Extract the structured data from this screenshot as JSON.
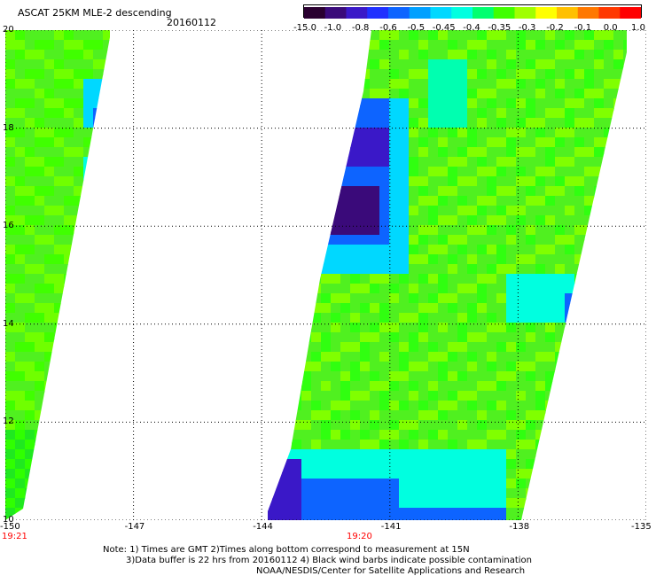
{
  "header": {
    "title": "ASCAT 25KM MLE-2 descending",
    "date": "20160112"
  },
  "colorbar": {
    "colors": [
      "#2a0030",
      "#3a0a7a",
      "#3a18c8",
      "#2030ff",
      "#0d64ff",
      "#00a0ff",
      "#00d8ff",
      "#00ffe0",
      "#00ff70",
      "#40ff00",
      "#a0ff00",
      "#ffff00",
      "#ffc000",
      "#ff7800",
      "#ff3800",
      "#ff0000"
    ],
    "ticks": [
      "-15.0",
      "-1.0",
      "-0.8",
      "-0.6",
      "-0.5",
      "-0.45",
      "-0.4",
      "-0.35",
      "-0.3",
      "-0.2",
      "-0.1",
      "0.0",
      "1.0"
    ]
  },
  "axes": {
    "y_ticks": [
      "20",
      "18",
      "16",
      "14",
      "12",
      "10"
    ],
    "x_ticks": [
      "-150",
      "-147",
      "-144",
      "-141",
      "-138",
      "-135"
    ],
    "ylim": [
      10,
      20
    ],
    "xlim": [
      -150,
      -135
    ]
  },
  "times": [
    "19:21",
    "19:20"
  ],
  "notes": [
    "Note: 1) Times are GMT 2)Times along bottom correspond to measurement at 15N",
    "3)Data buffer is 22 hrs from 20160112 4) Black wind barbs indicate possible contamination",
    "NOAA/NESDIS/Center for Satellite Applications and Research"
  ]
}
